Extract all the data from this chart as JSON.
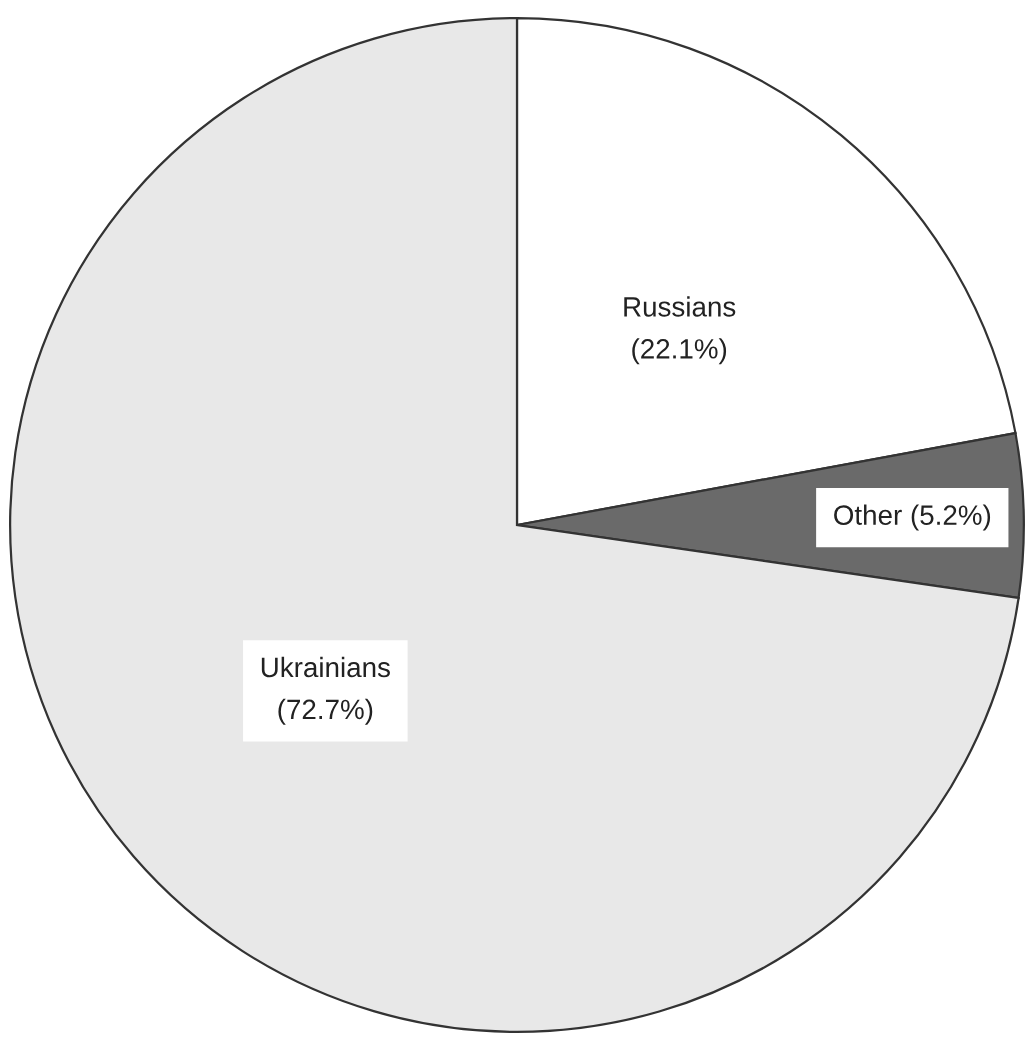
{
  "chart_data": {
    "type": "pie",
    "categories": [
      "Russians",
      "Other",
      "Ukrainians"
    ],
    "values": [
      22.1,
      5.2,
      72.7
    ],
    "value_labels": [
      "(22.1%)",
      "(5.2%)",
      "(72.7%)"
    ],
    "colors": [
      "#ffffff",
      "#6a6a6a",
      "#e8e8e8"
    ],
    "legend": false
  }
}
